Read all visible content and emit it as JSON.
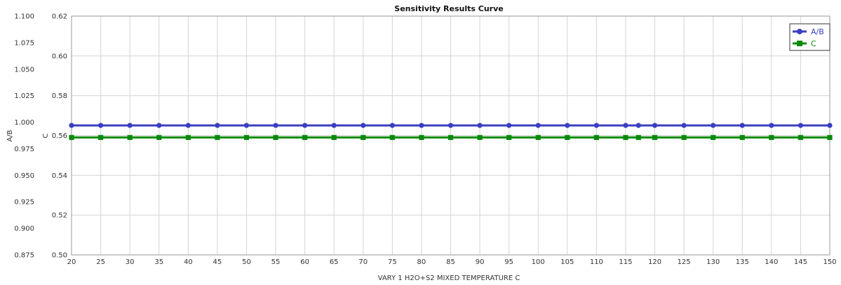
{
  "chart_data": {
    "type": "line",
    "title": "Sensitivity Results Curve",
    "xlabel": "VARY   1 H2O+S2 MIXED TEMPERATURE C",
    "ylabel_left": "A/B",
    "ylabel_right": "C",
    "xlim": [
      20,
      150
    ],
    "ylim_left": [
      0.875,
      1.1
    ],
    "ylim_right": [
      0.5,
      0.62
    ],
    "x_ticks": [
      "20",
      "25",
      "30",
      "35",
      "40",
      "45",
      "50",
      "55",
      "60",
      "65",
      "70",
      "75",
      "80",
      "85",
      "90",
      "95",
      "100",
      "105",
      "110",
      "115",
      "120",
      "125",
      "130",
      "135",
      "140",
      "145",
      "150"
    ],
    "y_ticks_left": [
      "0.875",
      "0.900",
      "0.925",
      "0.950",
      "0.975",
      "1.000",
      "1.025",
      "1.050",
      "1.075",
      "1.100"
    ],
    "y_ticks_right": [
      "0.50",
      "0.52",
      "0.54",
      "0.56",
      "0.58",
      "0.60",
      "0.62"
    ],
    "grid": true,
    "legend": "top-right",
    "x": [
      20,
      25,
      30,
      35,
      40,
      45,
      50,
      55,
      60,
      65,
      70,
      75,
      80,
      85,
      90,
      95,
      100,
      105,
      110,
      115,
      117.2,
      120,
      125,
      130,
      135,
      140,
      145,
      150
    ],
    "series": [
      {
        "name": "A/B",
        "axis": "left",
        "marker": "circle",
        "color": "#3b3fbf",
        "values": [
          0.997,
          0.997,
          0.997,
          0.997,
          0.997,
          0.997,
          0.997,
          0.997,
          0.997,
          0.997,
          0.997,
          0.997,
          0.997,
          0.997,
          0.997,
          0.997,
          0.997,
          0.997,
          0.997,
          0.997,
          0.997,
          0.997,
          0.997,
          0.997,
          0.997,
          0.997,
          0.997,
          0.997
        ]
      },
      {
        "name": "C",
        "axis": "right",
        "marker": "square",
        "color": "#0a8a0a",
        "values": [
          0.559,
          0.559,
          0.559,
          0.559,
          0.559,
          0.559,
          0.559,
          0.559,
          0.559,
          0.559,
          0.559,
          0.559,
          0.559,
          0.559,
          0.559,
          0.559,
          0.559,
          0.559,
          0.559,
          0.559,
          0.559,
          0.559,
          0.559,
          0.559,
          0.559,
          0.559,
          0.559,
          0.559
        ]
      }
    ]
  }
}
